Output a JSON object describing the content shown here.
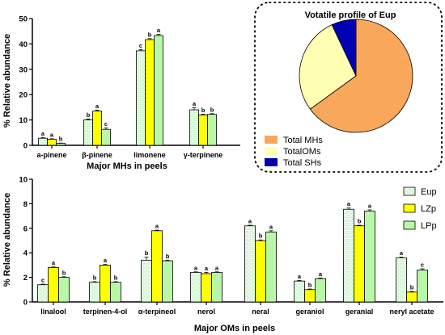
{
  "colors": {
    "Eup": "#c9f5c9",
    "LZp": "#ffff00",
    "LPp": "#b9f7a8",
    "pie_MHs": "#f9a85b",
    "pie_OMs": "#ffffb3",
    "pie_SHs": "#0000b3"
  },
  "chart_data": [
    {
      "type": "bar",
      "id": "top-bar",
      "ylabel": "% Relative abundance",
      "xlabel": "Major MHs in peels",
      "ylim": [
        0,
        50
      ],
      "yticks": [
        0,
        10,
        20,
        30,
        40,
        50
      ],
      "categories": [
        "a-pinene",
        "β-pinene",
        "limonene",
        "γ-terpinene"
      ],
      "series": [
        {
          "name": "Eup",
          "values": [
            2.8,
            10.0,
            37.3,
            14.0
          ],
          "errors": [
            0.3,
            0.4,
            0.5,
            0.8
          ],
          "sig": [
            "a",
            "b",
            "c",
            "a"
          ]
        },
        {
          "name": "LZp",
          "values": [
            2.4,
            13.5,
            41.7,
            12.0
          ],
          "errors": [
            0.2,
            0.4,
            0.4,
            0.3
          ],
          "sig": [
            "a",
            "a",
            "b",
            "b"
          ]
        },
        {
          "name": "LPp",
          "values": [
            0.8,
            6.3,
            43.3,
            12.2
          ],
          "errors": [
            0.1,
            0.5,
            0.5,
            0.3
          ],
          "sig": [
            "b",
            "c",
            "a",
            "b"
          ]
        }
      ]
    },
    {
      "type": "pie",
      "id": "pie",
      "title": "Votatile profile of Eup",
      "slices": [
        {
          "label": "Total MHs",
          "value": 65
        },
        {
          "label": "TotalOMs",
          "value": 28
        },
        {
          "label": "Total SHs",
          "value": 7
        }
      ]
    },
    {
      "type": "bar",
      "id": "bottom-bar",
      "ylabel": "% Relative abundance",
      "xlabel": "Major OMs in peels",
      "ylim": [
        0,
        10
      ],
      "yticks": [
        0,
        2,
        4,
        6,
        8,
        10
      ],
      "categories": [
        "linalool",
        "terpinen-4-ol",
        "α-terpineol",
        "nerol",
        "neral",
        "geraniol",
        "geranial",
        "neryl acetate"
      ],
      "series": [
        {
          "name": "Eup",
          "values": [
            1.4,
            1.6,
            3.4,
            2.4,
            6.2,
            1.7,
            7.55,
            3.6
          ],
          "errors": [
            0.05,
            0.05,
            0.25,
            0.05,
            0.05,
            0.05,
            0.1,
            0.05
          ],
          "sig": [
            "c",
            "b",
            "b",
            "a",
            "a",
            "a",
            "a",
            "a"
          ]
        },
        {
          "name": "LZp",
          "values": [
            2.8,
            3.0,
            5.8,
            2.3,
            5.0,
            1.0,
            6.2,
            0.8
          ],
          "errors": [
            0.05,
            0.05,
            0.05,
            0.1,
            0.05,
            0.05,
            0.05,
            0.05
          ],
          "sig": [
            "a",
            "a",
            "a",
            "a",
            "b",
            "b",
            "b",
            "b"
          ]
        },
        {
          "name": "LPp",
          "values": [
            2.0,
            1.6,
            3.35,
            2.4,
            5.7,
            1.9,
            7.4,
            2.6
          ],
          "errors": [
            0.05,
            0.05,
            0.05,
            0.05,
            0.1,
            0.05,
            0.1,
            0.1
          ],
          "sig": [
            "b",
            "b",
            "b",
            "a",
            "a",
            "a",
            "a",
            "c"
          ]
        }
      ]
    }
  ]
}
